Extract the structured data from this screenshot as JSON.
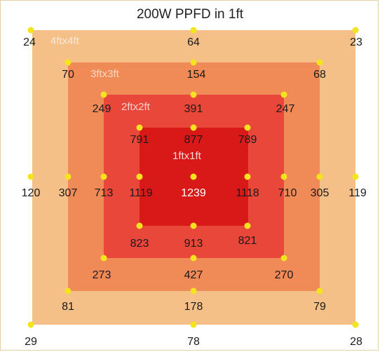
{
  "title": "200W PPFD in 1ft",
  "zones": [
    {
      "label": "4ftx4ft",
      "color": "#f5bf88",
      "label_color": "#f7e9d8"
    },
    {
      "label": "3ftx3ft",
      "color": "#f08a56",
      "label_color": "#fbd7c2"
    },
    {
      "label": "2ftx2ft",
      "color": "#e8473a",
      "label_color": "#fbd2cc"
    },
    {
      "label": "1ftx1ft",
      "color": "#d91818",
      "label_color": "#fbdada"
    }
  ],
  "point_color": "#f4e41c",
  "readings": [
    {
      "id": "a1",
      "value": "24"
    },
    {
      "id": "a2",
      "value": "64"
    },
    {
      "id": "a3",
      "value": "23"
    },
    {
      "id": "b1",
      "value": "70"
    },
    {
      "id": "b2",
      "value": "154"
    },
    {
      "id": "b3",
      "value": "68"
    },
    {
      "id": "c1",
      "value": "249"
    },
    {
      "id": "c2",
      "value": "391"
    },
    {
      "id": "c3",
      "value": "247"
    },
    {
      "id": "d1",
      "value": "791"
    },
    {
      "id": "d2",
      "value": "877"
    },
    {
      "id": "d3",
      "value": "789"
    },
    {
      "id": "m1",
      "value": "120"
    },
    {
      "id": "m2",
      "value": "307"
    },
    {
      "id": "m3",
      "value": "713"
    },
    {
      "id": "m4",
      "value": "1119"
    },
    {
      "id": "m5",
      "value": "1239"
    },
    {
      "id": "m6",
      "value": "1118"
    },
    {
      "id": "m7",
      "value": "710"
    },
    {
      "id": "m8",
      "value": "305"
    },
    {
      "id": "m9",
      "value": "119"
    },
    {
      "id": "e1",
      "value": "823"
    },
    {
      "id": "e2",
      "value": "913"
    },
    {
      "id": "e3",
      "value": "821"
    },
    {
      "id": "f1",
      "value": "273"
    },
    {
      "id": "f2",
      "value": "427"
    },
    {
      "id": "f3",
      "value": "270"
    },
    {
      "id": "g1",
      "value": "81"
    },
    {
      "id": "g2",
      "value": "178"
    },
    {
      "id": "g3",
      "value": "79"
    },
    {
      "id": "h1",
      "value": "29"
    },
    {
      "id": "h2",
      "value": "78"
    },
    {
      "id": "h3",
      "value": "28"
    }
  ]
}
